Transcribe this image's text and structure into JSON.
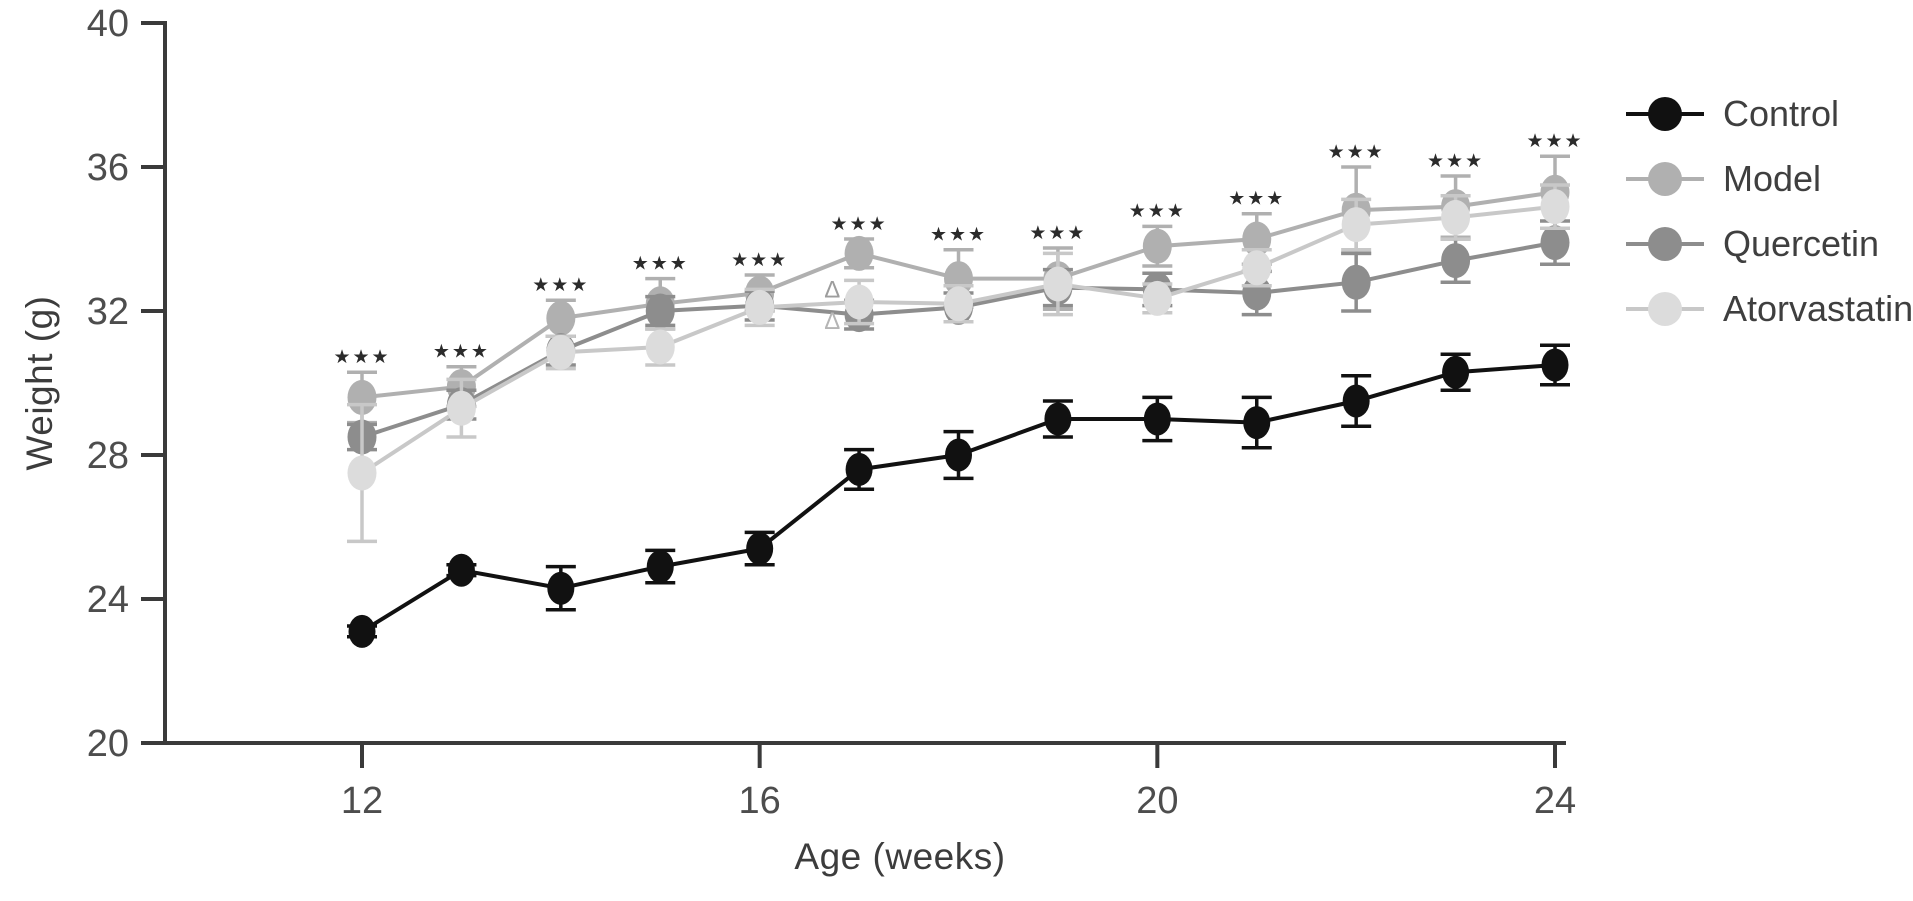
{
  "figure_type": "line-chart-with-error-bars",
  "chart_data": {
    "type": "line",
    "title": "",
    "xlabel": "Age (weeks)",
    "ylabel": "Weight (g)",
    "x_axis": {
      "label": "Age (weeks)",
      "min": 11,
      "max": 24.2,
      "ticks": [
        12,
        16,
        20,
        24
      ]
    },
    "y_axis": {
      "label": "Weight (g)",
      "min": 20,
      "max": 40,
      "ticks": [
        20,
        24,
        28,
        32,
        36,
        40
      ]
    },
    "grid": "off",
    "legend_position": "right",
    "x": [
      12,
      13,
      14,
      15,
      16,
      17,
      18,
      19,
      20,
      21,
      22,
      23,
      24
    ],
    "series": [
      {
        "name": "Control",
        "color": "#111111",
        "line_color": "#111111",
        "values": [
          23.1,
          24.8,
          24.3,
          24.9,
          25.4,
          27.6,
          28.0,
          29.0,
          29.0,
          28.9,
          29.5,
          30.3,
          30.5
        ],
        "errors": [
          0.15,
          0.15,
          0.6,
          0.45,
          0.45,
          0.55,
          0.65,
          0.5,
          0.6,
          0.7,
          0.7,
          0.5,
          0.55
        ]
      },
      {
        "name": "Model",
        "color": "#b0b0b0",
        "line_color": "#b0b0b0",
        "values": [
          29.6,
          29.9,
          31.8,
          32.2,
          32.5,
          33.6,
          32.9,
          32.9,
          33.8,
          34.0,
          34.8,
          34.9,
          35.3
        ],
        "errors": [
          0.7,
          0.55,
          0.5,
          0.7,
          0.5,
          0.4,
          0.8,
          0.85,
          0.55,
          0.7,
          1.2,
          0.85,
          1.0
        ]
      },
      {
        "name": "Quercetin",
        "color": "#8d8d8d",
        "line_color": "#8d8d8d",
        "values": [
          28.5,
          29.4,
          30.9,
          32.0,
          32.15,
          31.9,
          32.1,
          32.65,
          32.6,
          32.5,
          32.8,
          33.4,
          33.9
        ],
        "errors": [
          0.35,
          0.4,
          0.4,
          0.4,
          0.4,
          0.4,
          0.4,
          0.5,
          0.45,
          0.6,
          0.8,
          0.6,
          0.6
        ]
      },
      {
        "name": "Atorvastatin",
        "color": "#dcdcdc",
        "line_color": "#c8c8c8",
        "values": [
          27.5,
          29.3,
          30.85,
          31.0,
          32.1,
          32.25,
          32.2,
          32.75,
          32.35,
          33.2,
          34.4,
          34.6,
          34.9
        ],
        "errors": [
          1.9,
          0.8,
          0.45,
          0.5,
          0.5,
          0.6,
          0.5,
          0.85,
          0.4,
          0.5,
          0.7,
          0.6,
          0.6
        ]
      }
    ],
    "significance": {
      "symbol": "★★★",
      "color": "#2b2b2b",
      "weeks": [
        12,
        13,
        14,
        15,
        16,
        17,
        18,
        19,
        20,
        21,
        22,
        23,
        24
      ],
      "offset_above_error_top": 0.45
    },
    "annotations": [
      {
        "symbol": "Δ",
        "x": 16.73,
        "y": 32.6,
        "color": "#9d9d9d"
      },
      {
        "symbol": "Δ",
        "x": 16.73,
        "y": 31.72,
        "color": "#b5b5b5"
      }
    ],
    "axis_color": "#3a3a3a",
    "tick_label_color": "#4d4d4d"
  }
}
